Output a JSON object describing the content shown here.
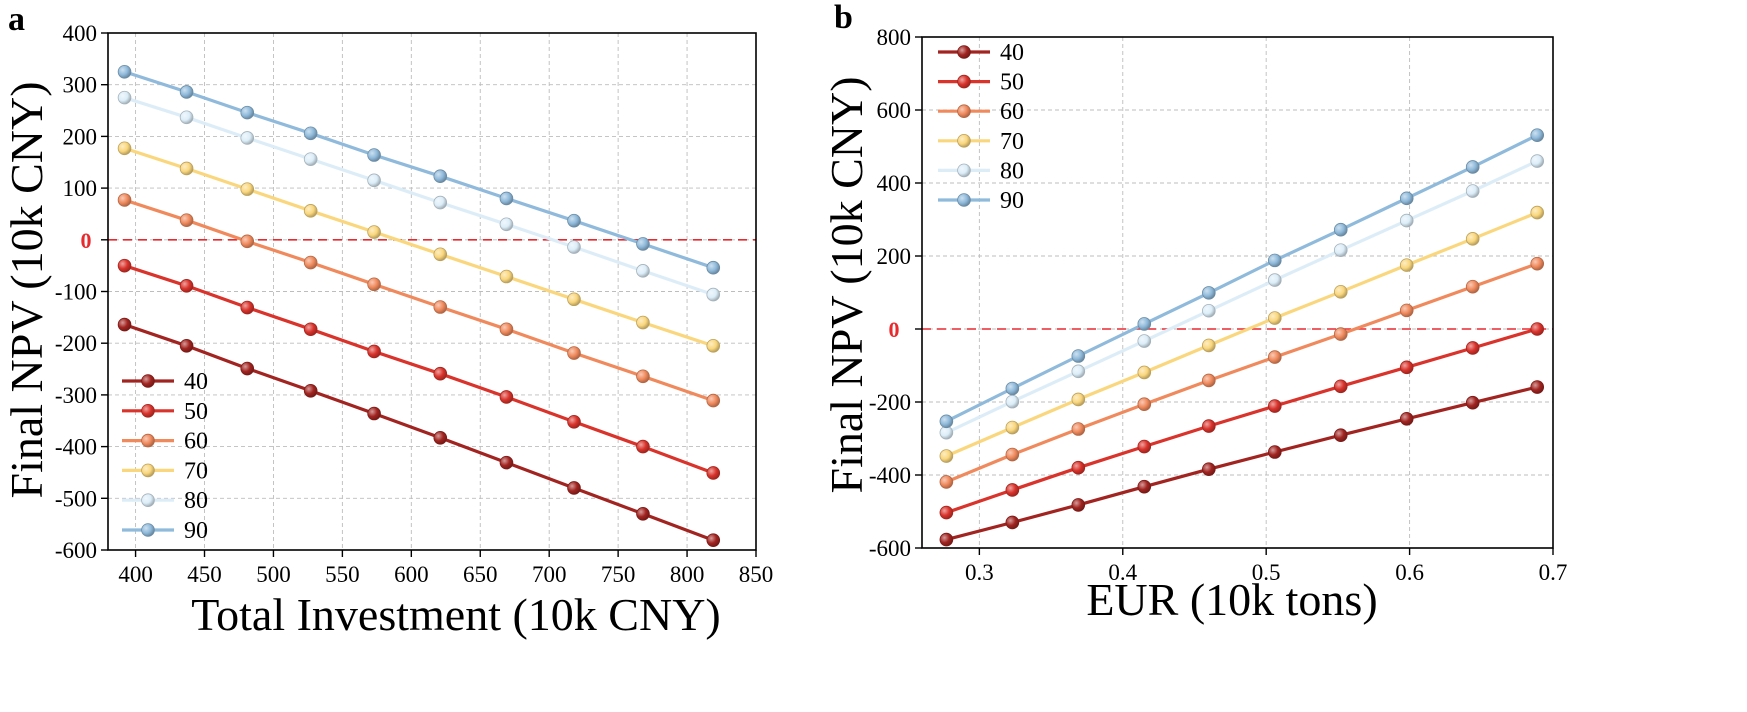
{
  "series_colors": {
    "40": "#a22420",
    "50": "#d9332b",
    "60": "#f08a5d",
    "70": "#fad77d",
    "80": "#dcedf8",
    "90": "#8fbadb"
  },
  "reference_line_color": "#e8292e",
  "chart_data": [
    {
      "panel": "a",
      "type": "line",
      "xlabel": "Total Investment (10k CNY)",
      "ylabel": "Final NPV (10k CNY)",
      "xlim": [
        380,
        850
      ],
      "ylim": [
        -600,
        400
      ],
      "xticks": [
        400,
        450,
        500,
        550,
        600,
        650,
        700,
        750,
        800,
        850
      ],
      "yticks": [
        -600,
        -500,
        -400,
        -300,
        -200,
        -100,
        0,
        100,
        200,
        300,
        400
      ],
      "ytick_labels": [
        "-600",
        "-500",
        "-400",
        "-300",
        "-200",
        "-100",
        "",
        "100",
        "200",
        "300",
        "400"
      ],
      "grid": true,
      "reference_line": {
        "y": 0,
        "label": "0"
      },
      "legend_position": "bottom-left",
      "x": [
        392,
        437,
        481,
        527,
        573,
        621,
        669,
        718,
        768,
        819
      ],
      "series": [
        {
          "name": "40",
          "values": [
            -164,
            -205,
            -249,
            -292,
            -336,
            -383,
            -431,
            -480,
            -530,
            -581
          ]
        },
        {
          "name": "50",
          "values": [
            -50,
            -89,
            -131,
            -173,
            -216,
            -259,
            -304,
            -352,
            -400,
            -451
          ]
        },
        {
          "name": "60",
          "values": [
            77,
            38,
            -3,
            -44,
            -86,
            -130,
            -173,
            -219,
            -264,
            -311
          ]
        },
        {
          "name": "70",
          "values": [
            177,
            138,
            98,
            56,
            15,
            -28,
            -71,
            -115,
            -160,
            -205
          ]
        },
        {
          "name": "80",
          "values": [
            275,
            237,
            197,
            156,
            115,
            72,
            30,
            -14,
            -60,
            -106
          ]
        },
        {
          "name": "90",
          "values": [
            325,
            286,
            246,
            206,
            164,
            123,
            80,
            37,
            -8,
            -54
          ]
        }
      ]
    },
    {
      "panel": "b",
      "type": "line",
      "xlabel": "EUR (10k tons)",
      "ylabel": "Final NPV (10k CNY)",
      "xlim": [
        0.26,
        0.7
      ],
      "ylim": [
        -600,
        800
      ],
      "xticks": [
        0.3,
        0.4,
        0.5,
        0.6,
        0.7
      ],
      "yticks": [
        -600,
        -400,
        -200,
        0,
        200,
        400,
        600,
        800
      ],
      "ytick_labels": [
        "-600",
        "-400",
        "-200",
        "",
        "200",
        "400",
        "600",
        "800"
      ],
      "grid": true,
      "reference_line": {
        "y": 0,
        "label": "0"
      },
      "legend_position": "top-left",
      "x": [
        0.277,
        0.323,
        0.369,
        0.415,
        0.46,
        0.506,
        0.552,
        0.598,
        0.644,
        0.689
      ],
      "series": [
        {
          "name": "40",
          "values": [
            -577,
            -530,
            -482,
            -432,
            -384,
            -337,
            -291,
            -246,
            -202,
            -159
          ]
        },
        {
          "name": "50",
          "values": [
            -503,
            -441,
            -380,
            -322,
            -266,
            -211,
            -157,
            -105,
            -52,
            0
          ]
        },
        {
          "name": "60",
          "values": [
            -419,
            -344,
            -274,
            -206,
            -141,
            -77,
            -14,
            51,
            116,
            179
          ]
        },
        {
          "name": "70",
          "values": [
            -348,
            -270,
            -193,
            -119,
            -45,
            30,
            102,
            175,
            247,
            319
          ]
        },
        {
          "name": "80",
          "values": [
            -284,
            -199,
            -116,
            -33,
            50,
            134,
            216,
            297,
            378,
            460
          ]
        },
        {
          "name": "90",
          "values": [
            -253,
            -163,
            -74,
            14,
            99,
            188,
            272,
            358,
            444,
            531
          ]
        }
      ]
    }
  ]
}
